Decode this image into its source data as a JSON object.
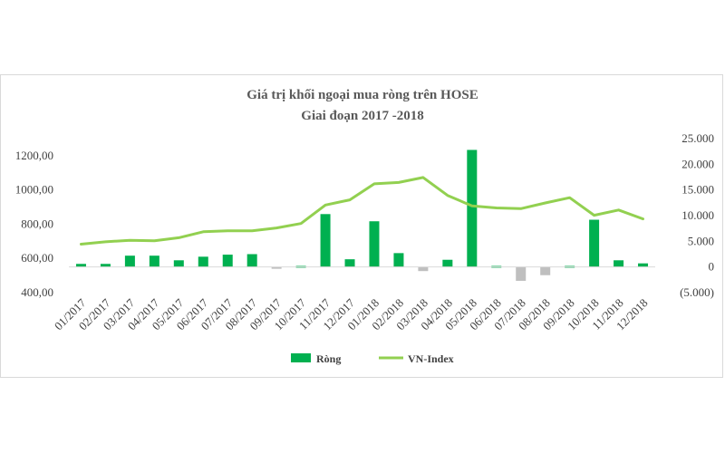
{
  "chart_data": {
    "type": "bar+line",
    "title": "Giá trị khối ngoại mua ròng trên HOSE",
    "subtitle": "Giai đoạn 2017 -2018",
    "categories": [
      "01/2017",
      "02/2017",
      "03/2017",
      "04/2017",
      "05/2017",
      "06/2017",
      "07/2017",
      "08/2017",
      "09/2017",
      "10/2017",
      "11/2017",
      "12/2017",
      "01/2018",
      "02/2018",
      "03/2018",
      "04/2018",
      "05/2018",
      "06/2018",
      "07/2018",
      "08/2018",
      "09/2018",
      "10/2018",
      "11/2018",
      "12/2018"
    ],
    "series": [
      {
        "name": "Ròng",
        "type": "bar",
        "axis": "right",
        "color": "#00b050",
        "negative_color": "#bfbfbf",
        "values": [
          600,
          600,
          2200,
          2200,
          1300,
          2000,
          2400,
          2500,
          -200,
          200,
          10300,
          1500,
          8900,
          2700,
          -800,
          1400,
          22800,
          200,
          -2700,
          -1600,
          200,
          9200,
          1300,
          700
        ]
      },
      {
        "name": "VN-Index",
        "type": "line",
        "axis": "left",
        "color": "#92d050",
        "values": [
          683,
          697,
          706,
          703,
          721,
          756,
          761,
          761,
          778,
          804,
          912,
          942,
          1036,
          1044,
          1073,
          968,
          907,
          895,
          891,
          924,
          955,
          852,
          883,
          831
        ]
      }
    ],
    "left_axis": {
      "min": 400,
      "max": 1300,
      "ticks": [
        {
          "value": 400,
          "label": "400,00"
        },
        {
          "value": 600,
          "label": "600,00"
        },
        {
          "value": 800,
          "label": "800,00"
        },
        {
          "value": 1000,
          "label": "1000,00"
        },
        {
          "value": 1200,
          "label": "1200,00"
        }
      ]
    },
    "right_axis": {
      "min": -5000,
      "max": 25000,
      "ticks": [
        {
          "value": -5000,
          "label": "(5.000)"
        },
        {
          "value": 0,
          "label": "0"
        },
        {
          "value": 5000,
          "label": "5.000"
        },
        {
          "value": 10000,
          "label": "10.000"
        },
        {
          "value": 15000,
          "label": "15.000"
        },
        {
          "value": 20000,
          "label": "20.000"
        },
        {
          "value": 25000,
          "label": "25.000"
        }
      ]
    },
    "legend": [
      {
        "label": "Ròng",
        "color": "#00b050",
        "kind": "bar"
      },
      {
        "label": "VN-Index",
        "color": "#92d050",
        "kind": "line"
      }
    ],
    "legend_position": "bottom",
    "grid": false
  }
}
